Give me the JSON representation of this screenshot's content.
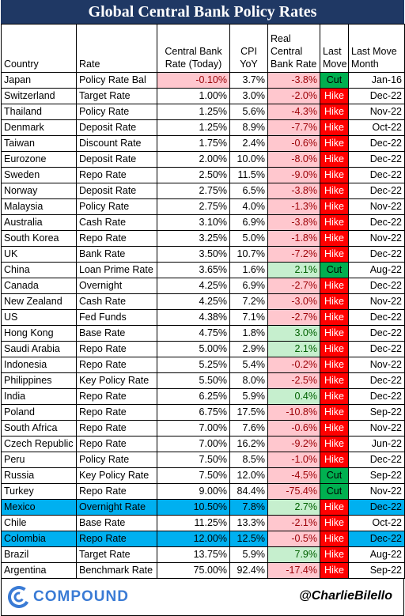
{
  "title": "Global Central Bank Policy Rates",
  "headers": {
    "country": "Country",
    "rate": "Rate",
    "cb_rate": [
      "Central Bank",
      "Rate (Today)"
    ],
    "cpi": [
      "CPI",
      "YoY"
    ],
    "real": [
      "Real",
      "Central",
      "Bank Rate"
    ],
    "last_move": [
      "Last",
      "Move"
    ],
    "last_move_month": [
      "Last Move",
      "Month"
    ]
  },
  "rows": [
    {
      "country": "Japan",
      "rate": "Policy Rate Bal",
      "cb": "-0.10%",
      "cpi": "3.7%",
      "real": "-3.8%",
      "move": "Cut",
      "month": "Jan-16",
      "cb_neg": true
    },
    {
      "country": "Switzerland",
      "rate": "Target Rate",
      "cb": "1.00%",
      "cpi": "3.0%",
      "real": "-2.0%",
      "move": "Hike",
      "month": "Dec-22"
    },
    {
      "country": "Thailand",
      "rate": "Policy Rate",
      "cb": "1.25%",
      "cpi": "5.6%",
      "real": "-4.3%",
      "move": "Hike",
      "month": "Nov-22"
    },
    {
      "country": "Denmark",
      "rate": "Deposit Rate",
      "cb": "1.25%",
      "cpi": "8.9%",
      "real": "-7.7%",
      "move": "Hike",
      "month": "Oct-22"
    },
    {
      "country": "Taiwan",
      "rate": "Discount Rate",
      "cb": "1.75%",
      "cpi": "2.4%",
      "real": "-0.6%",
      "move": "Hike",
      "month": "Dec-22"
    },
    {
      "country": "Eurozone",
      "rate": "Deposit Rate",
      "cb": "2.00%",
      "cpi": "10.0%",
      "real": "-8.0%",
      "move": "Hike",
      "month": "Dec-22"
    },
    {
      "country": "Sweden",
      "rate": "Repo Rate",
      "cb": "2.50%",
      "cpi": "11.5%",
      "real": "-9.0%",
      "move": "Hike",
      "month": "Dec-22"
    },
    {
      "country": "Norway",
      "rate": "Deposit Rate",
      "cb": "2.75%",
      "cpi": "6.5%",
      "real": "-3.8%",
      "move": "Hike",
      "month": "Dec-22"
    },
    {
      "country": "Malaysia",
      "rate": "Policy Rate",
      "cb": "2.75%",
      "cpi": "4.0%",
      "real": "-1.3%",
      "move": "Hike",
      "month": "Nov-22"
    },
    {
      "country": "Australia",
      "rate": "Cash Rate",
      "cb": "3.10%",
      "cpi": "6.9%",
      "real": "-3.8%",
      "move": "Hike",
      "month": "Dec-22"
    },
    {
      "country": "South Korea",
      "rate": "Repo Rate",
      "cb": "3.25%",
      "cpi": "5.0%",
      "real": "-1.8%",
      "move": "Hike",
      "month": "Nov-22"
    },
    {
      "country": "UK",
      "rate": "Bank Rate",
      "cb": "3.50%",
      "cpi": "10.7%",
      "real": "-7.2%",
      "move": "Hike",
      "month": "Dec-22"
    },
    {
      "country": "China",
      "rate": "Loan Prime Rate",
      "cb": "3.65%",
      "cpi": "1.6%",
      "real": "2.1%",
      "move": "Cut",
      "month": "Aug-22"
    },
    {
      "country": "Canada",
      "rate": "Overnight",
      "cb": "4.25%",
      "cpi": "6.9%",
      "real": "-2.7%",
      "move": "Hike",
      "month": "Dec-22"
    },
    {
      "country": "New Zealand",
      "rate": "Cash Rate",
      "cb": "4.25%",
      "cpi": "7.2%",
      "real": "-3.0%",
      "move": "Hike",
      "month": "Nov-22"
    },
    {
      "country": "US",
      "rate": "Fed Funds",
      "cb": "4.38%",
      "cpi": "7.1%",
      "real": "-2.7%",
      "move": "Hike",
      "month": "Dec-22"
    },
    {
      "country": "Hong Kong",
      "rate": "Base Rate",
      "cb": "4.75%",
      "cpi": "1.8%",
      "real": "3.0%",
      "move": "Hike",
      "month": "Dec-22"
    },
    {
      "country": "Saudi Arabia",
      "rate": "Repo Rate",
      "cb": "5.00%",
      "cpi": "2.9%",
      "real": "2.1%",
      "move": "Hike",
      "month": "Dec-22"
    },
    {
      "country": "Indonesia",
      "rate": "Repo Rate",
      "cb": "5.25%",
      "cpi": "5.4%",
      "real": "-0.2%",
      "move": "Hike",
      "month": "Nov-22"
    },
    {
      "country": "Philippines",
      "rate": "Key Policy Rate",
      "cb": "5.50%",
      "cpi": "8.0%",
      "real": "-2.5%",
      "move": "Hike",
      "month": "Dec-22"
    },
    {
      "country": "India",
      "rate": "Repo Rate",
      "cb": "6.25%",
      "cpi": "5.9%",
      "real": "0.4%",
      "move": "Hike",
      "month": "Dec-22"
    },
    {
      "country": "Poland",
      "rate": "Repo Rate",
      "cb": "6.75%",
      "cpi": "17.5%",
      "real": "-10.8%",
      "move": "Hike",
      "month": "Sep-22"
    },
    {
      "country": "South Africa",
      "rate": "Repo Rate",
      "cb": "7.00%",
      "cpi": "7.6%",
      "real": "-0.6%",
      "move": "Hike",
      "month": "Nov-22"
    },
    {
      "country": "Czech Republic",
      "rate": "Repo Rate",
      "cb": "7.00%",
      "cpi": "16.2%",
      "real": "-9.2%",
      "move": "Hike",
      "month": "Jun-22"
    },
    {
      "country": "Peru",
      "rate": "Policy Rate",
      "cb": "7.50%",
      "cpi": "8.5%",
      "real": "-1.0%",
      "move": "Hike",
      "month": "Dec-22"
    },
    {
      "country": "Russia",
      "rate": "Key Policy Rate",
      "cb": "7.50%",
      "cpi": "12.0%",
      "real": "-4.5%",
      "move": "Cut",
      "month": "Sep-22"
    },
    {
      "country": "Turkey",
      "rate": "Repo Rate",
      "cb": "9.00%",
      "cpi": "84.4%",
      "real": "-75.4%",
      "move": "Cut",
      "month": "Nov-22"
    },
    {
      "country": "Mexico",
      "rate": "Overnight Rate",
      "cb": "10.50%",
      "cpi": "7.8%",
      "real": "2.7%",
      "move": "Hike",
      "month": "Dec-22",
      "highlight": true
    },
    {
      "country": "Chile",
      "rate": "Base Rate",
      "cb": "11.25%",
      "cpi": "13.3%",
      "real": "-2.1%",
      "move": "Hike",
      "month": "Oct-22"
    },
    {
      "country": "Colombia",
      "rate": "Repo Rate",
      "cb": "12.00%",
      "cpi": "12.5%",
      "real": "-0.5%",
      "move": "Hike",
      "month": "Dec-22",
      "highlight": true
    },
    {
      "country": "Brazil",
      "rate": "Target Rate",
      "cb": "13.75%",
      "cpi": "5.9%",
      "real": "7.9%",
      "move": "Hike",
      "month": "Aug-22"
    },
    {
      "country": "Argentina",
      "rate": "Benchmark Rate",
      "cb": "75.00%",
      "cpi": "92.4%",
      "real": "-17.4%",
      "move": "Hike",
      "month": "Sep-22"
    }
  ],
  "footer": {
    "logo_text": "COMPOUND",
    "logo_icon": "compound-c-logo-icon",
    "handle": "@CharlieBilello"
  },
  "colors": {
    "title_bg": "#1f3864",
    "negative_fill": "#ffc7ce",
    "positive_fill": "#c6efce",
    "hike": "#ff0000",
    "cut": "#00b050",
    "highlight": "#00b0f0"
  }
}
